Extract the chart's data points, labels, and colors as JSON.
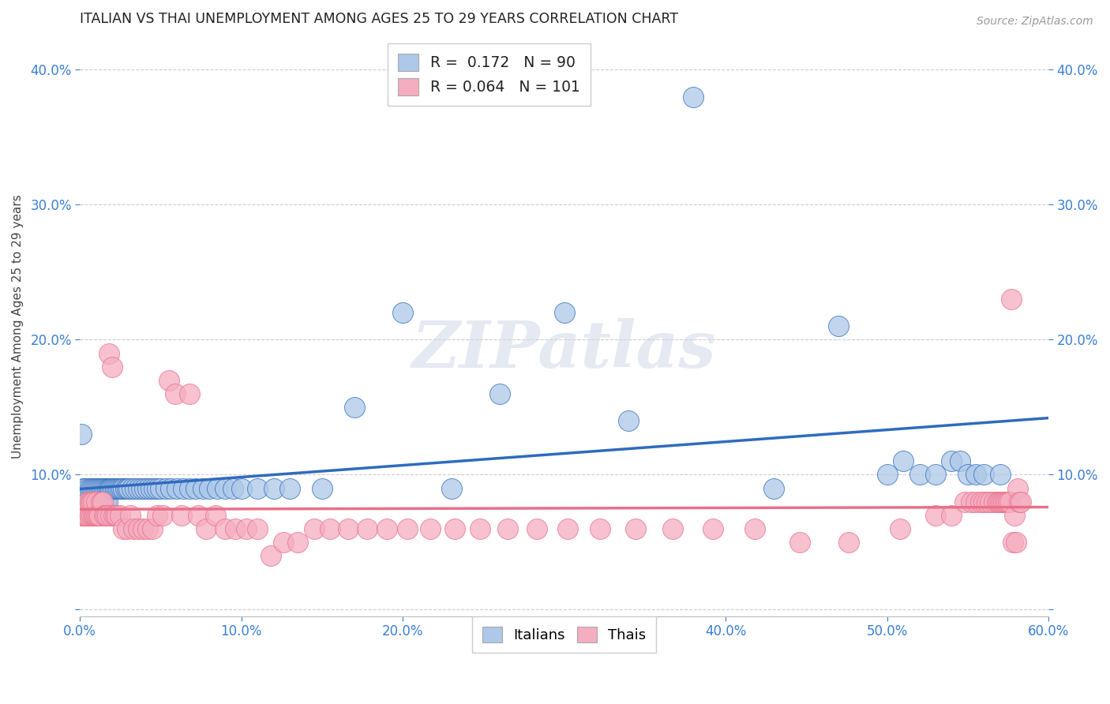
{
  "title": "ITALIAN VS THAI UNEMPLOYMENT AMONG AGES 25 TO 29 YEARS CORRELATION CHART",
  "source": "Source: ZipAtlas.com",
  "ylabel": "Unemployment Among Ages 25 to 29 years",
  "xlim": [
    0.0,
    0.6
  ],
  "ylim": [
    -0.005,
    0.425
  ],
  "xticks": [
    0.0,
    0.1,
    0.2,
    0.3,
    0.4,
    0.5,
    0.6
  ],
  "yticks": [
    0.0,
    0.1,
    0.2,
    0.3,
    0.4
  ],
  "italian_R": 0.172,
  "italian_N": 90,
  "thai_R": 0.064,
  "thai_N": 101,
  "italian_color": "#adc8e8",
  "thai_color": "#f5adc0",
  "italian_line_color": "#2f6bbf",
  "thai_line_color": "#e8708a",
  "background_color": "#ffffff",
  "grid_color": "#c8c8c8",
  "title_fontsize": 12.5,
  "axis_label_fontsize": 11,
  "tick_fontsize": 12,
  "watermark": "ZIPatlas",
  "italian_x": [
    0.001,
    0.002,
    0.003,
    0.004,
    0.005,
    0.005,
    0.006,
    0.006,
    0.007,
    0.007,
    0.008,
    0.008,
    0.009,
    0.009,
    0.01,
    0.01,
    0.011,
    0.011,
    0.012,
    0.012,
    0.013,
    0.013,
    0.014,
    0.014,
    0.015,
    0.015,
    0.016,
    0.016,
    0.017,
    0.017,
    0.018,
    0.018,
    0.019,
    0.019,
    0.02,
    0.021,
    0.022,
    0.023,
    0.024,
    0.025,
    0.026,
    0.027,
    0.028,
    0.029,
    0.03,
    0.032,
    0.034,
    0.036,
    0.038,
    0.04,
    0.042,
    0.044,
    0.046,
    0.048,
    0.05,
    0.053,
    0.056,
    0.06,
    0.064,
    0.068,
    0.072,
    0.076,
    0.08,
    0.085,
    0.09,
    0.095,
    0.1,
    0.11,
    0.12,
    0.13,
    0.15,
    0.17,
    0.2,
    0.23,
    0.26,
    0.3,
    0.34,
    0.38,
    0.43,
    0.47,
    0.5,
    0.51,
    0.52,
    0.53,
    0.54,
    0.545,
    0.55,
    0.555,
    0.56,
    0.57
  ],
  "italian_y": [
    0.13,
    0.09,
    0.09,
    0.08,
    0.08,
    0.09,
    0.08,
    0.09,
    0.08,
    0.09,
    0.08,
    0.09,
    0.08,
    0.09,
    0.08,
    0.09,
    0.08,
    0.09,
    0.08,
    0.09,
    0.08,
    0.09,
    0.08,
    0.09,
    0.08,
    0.09,
    0.08,
    0.09,
    0.08,
    0.09,
    0.09,
    0.09,
    0.09,
    0.09,
    0.09,
    0.09,
    0.09,
    0.09,
    0.09,
    0.09,
    0.09,
    0.09,
    0.09,
    0.09,
    0.09,
    0.09,
    0.09,
    0.09,
    0.09,
    0.09,
    0.09,
    0.09,
    0.09,
    0.09,
    0.09,
    0.09,
    0.09,
    0.09,
    0.09,
    0.09,
    0.09,
    0.09,
    0.09,
    0.09,
    0.09,
    0.09,
    0.09,
    0.09,
    0.09,
    0.09,
    0.09,
    0.15,
    0.22,
    0.09,
    0.16,
    0.22,
    0.14,
    0.38,
    0.09,
    0.21,
    0.1,
    0.11,
    0.1,
    0.1,
    0.11,
    0.11,
    0.1,
    0.1,
    0.1,
    0.1
  ],
  "thai_x": [
    0.001,
    0.002,
    0.003,
    0.004,
    0.005,
    0.005,
    0.006,
    0.006,
    0.007,
    0.007,
    0.008,
    0.008,
    0.009,
    0.009,
    0.01,
    0.01,
    0.011,
    0.011,
    0.012,
    0.013,
    0.014,
    0.015,
    0.016,
    0.017,
    0.018,
    0.019,
    0.02,
    0.021,
    0.022,
    0.023,
    0.025,
    0.027,
    0.029,
    0.031,
    0.033,
    0.036,
    0.039,
    0.042,
    0.045,
    0.048,
    0.051,
    0.055,
    0.059,
    0.063,
    0.068,
    0.073,
    0.078,
    0.084,
    0.09,
    0.096,
    0.103,
    0.11,
    0.118,
    0.126,
    0.135,
    0.145,
    0.155,
    0.166,
    0.178,
    0.19,
    0.203,
    0.217,
    0.232,
    0.248,
    0.265,
    0.283,
    0.302,
    0.322,
    0.344,
    0.367,
    0.392,
    0.418,
    0.446,
    0.476,
    0.508,
    0.53,
    0.54,
    0.548,
    0.552,
    0.555,
    0.558,
    0.56,
    0.562,
    0.564,
    0.566,
    0.568,
    0.569,
    0.57,
    0.571,
    0.572,
    0.573,
    0.574,
    0.575,
    0.576,
    0.577,
    0.578,
    0.579,
    0.58,
    0.581,
    0.582,
    0.583
  ],
  "thai_y": [
    0.07,
    0.07,
    0.07,
    0.07,
    0.07,
    0.08,
    0.07,
    0.08,
    0.07,
    0.08,
    0.07,
    0.08,
    0.07,
    0.07,
    0.07,
    0.08,
    0.07,
    0.07,
    0.07,
    0.08,
    0.08,
    0.07,
    0.07,
    0.07,
    0.19,
    0.07,
    0.18,
    0.07,
    0.07,
    0.07,
    0.07,
    0.06,
    0.06,
    0.07,
    0.06,
    0.06,
    0.06,
    0.06,
    0.06,
    0.07,
    0.07,
    0.17,
    0.16,
    0.07,
    0.16,
    0.07,
    0.06,
    0.07,
    0.06,
    0.06,
    0.06,
    0.06,
    0.04,
    0.05,
    0.05,
    0.06,
    0.06,
    0.06,
    0.06,
    0.06,
    0.06,
    0.06,
    0.06,
    0.06,
    0.06,
    0.06,
    0.06,
    0.06,
    0.06,
    0.06,
    0.06,
    0.06,
    0.05,
    0.05,
    0.06,
    0.07,
    0.07,
    0.08,
    0.08,
    0.08,
    0.08,
    0.08,
    0.08,
    0.08,
    0.08,
    0.08,
    0.08,
    0.08,
    0.08,
    0.08,
    0.08,
    0.08,
    0.08,
    0.08,
    0.23,
    0.05,
    0.07,
    0.05,
    0.09,
    0.08,
    0.08
  ]
}
